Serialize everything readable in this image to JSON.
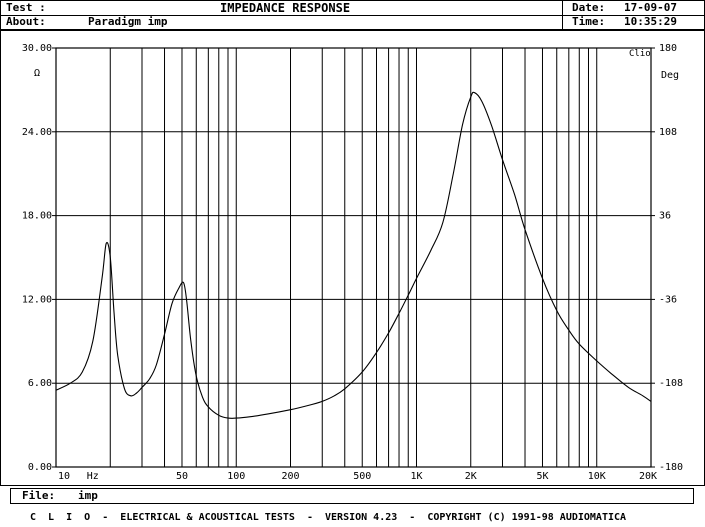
{
  "header": {
    "test_label": "Test :",
    "about_label": "About:",
    "about_value": "Paradigm imp",
    "title": "IMPEDANCE RESPONSE",
    "date_label": "Date:",
    "date_value": "17-09-07",
    "time_label": "Time:",
    "time_value": "10:35:29"
  },
  "file": {
    "label": "File:",
    "value": "imp"
  },
  "footer": {
    "text": "C  L  I  O  -  ELECTRICAL & ACOUSTICAL TESTS  -  VERSION 4.23  -  COPYRIGHT (C) 1991-98 AUDIOMATICA"
  },
  "chart_data": {
    "type": "line",
    "corner_label": "Clio",
    "x_scale": "log",
    "xlim": [
      10,
      20000
    ],
    "ylim": [
      0,
      30
    ],
    "ylabel": "Ω",
    "y2label": "Deg",
    "y2lim": [
      -180,
      180
    ],
    "x_ticks": [
      {
        "value": 10,
        "label": "10"
      },
      {
        "value": 16,
        "label": "Hz"
      },
      {
        "value": 50,
        "label": "50"
      },
      {
        "value": 100,
        "label": "100"
      },
      {
        "value": 200,
        "label": "200"
      },
      {
        "value": 500,
        "label": "500"
      },
      {
        "value": 1000,
        "label": "1K"
      },
      {
        "value": 2000,
        "label": "2K"
      },
      {
        "value": 5000,
        "label": "5K"
      },
      {
        "value": 10000,
        "label": "10K"
      },
      {
        "value": 20000,
        "label": "20K"
      }
    ],
    "y_ticks": [
      {
        "value": 0,
        "label": "0.00"
      },
      {
        "value": 6,
        "label": "6.00"
      },
      {
        "value": 12,
        "label": "12.00"
      },
      {
        "value": 18,
        "label": "18.00"
      },
      {
        "value": 24,
        "label": "24.00"
      },
      {
        "value": 30,
        "label": "30.00"
      }
    ],
    "y2_ticks": [
      {
        "value": -180,
        "label": "-180"
      },
      {
        "value": -108,
        "label": "-108"
      },
      {
        "value": -36,
        "label": "-36"
      },
      {
        "value": 36,
        "label": "36"
      },
      {
        "value": 108,
        "label": "108"
      },
      {
        "value": 180,
        "label": "180"
      }
    ],
    "series": [
      {
        "x": [
          10,
          12,
          14,
          16,
          18,
          19,
          20,
          21,
          22,
          24,
          26,
          28,
          30,
          33,
          36,
          40,
          44,
          48,
          51,
          53,
          56,
          60,
          65,
          70,
          80,
          90,
          100,
          120,
          150,
          200,
          250,
          300,
          350,
          400,
          500,
          600,
          700,
          800,
          900,
          1000,
          1200,
          1400,
          1600,
          1800,
          2000,
          2100,
          2300,
          2600,
          3000,
          3500,
          4000,
          5000,
          6000,
          7000,
          8000,
          10000,
          12000,
          15000,
          18000,
          20000
        ],
        "y": [
          5.5,
          6.0,
          6.8,
          9.0,
          13.5,
          16.0,
          15.0,
          11.0,
          8.0,
          5.6,
          5.1,
          5.3,
          5.7,
          6.3,
          7.3,
          9.5,
          11.7,
          12.8,
          13.2,
          12.0,
          9.0,
          6.5,
          5.0,
          4.3,
          3.7,
          3.5,
          3.5,
          3.6,
          3.8,
          4.1,
          4.4,
          4.7,
          5.1,
          5.6,
          6.8,
          8.2,
          9.6,
          11.0,
          12.3,
          13.5,
          15.5,
          17.5,
          21.0,
          24.5,
          26.5,
          26.8,
          26.2,
          24.5,
          22.0,
          19.5,
          17.0,
          13.5,
          11.2,
          9.8,
          8.8,
          7.6,
          6.7,
          5.7,
          5.1,
          4.7
        ]
      }
    ]
  }
}
